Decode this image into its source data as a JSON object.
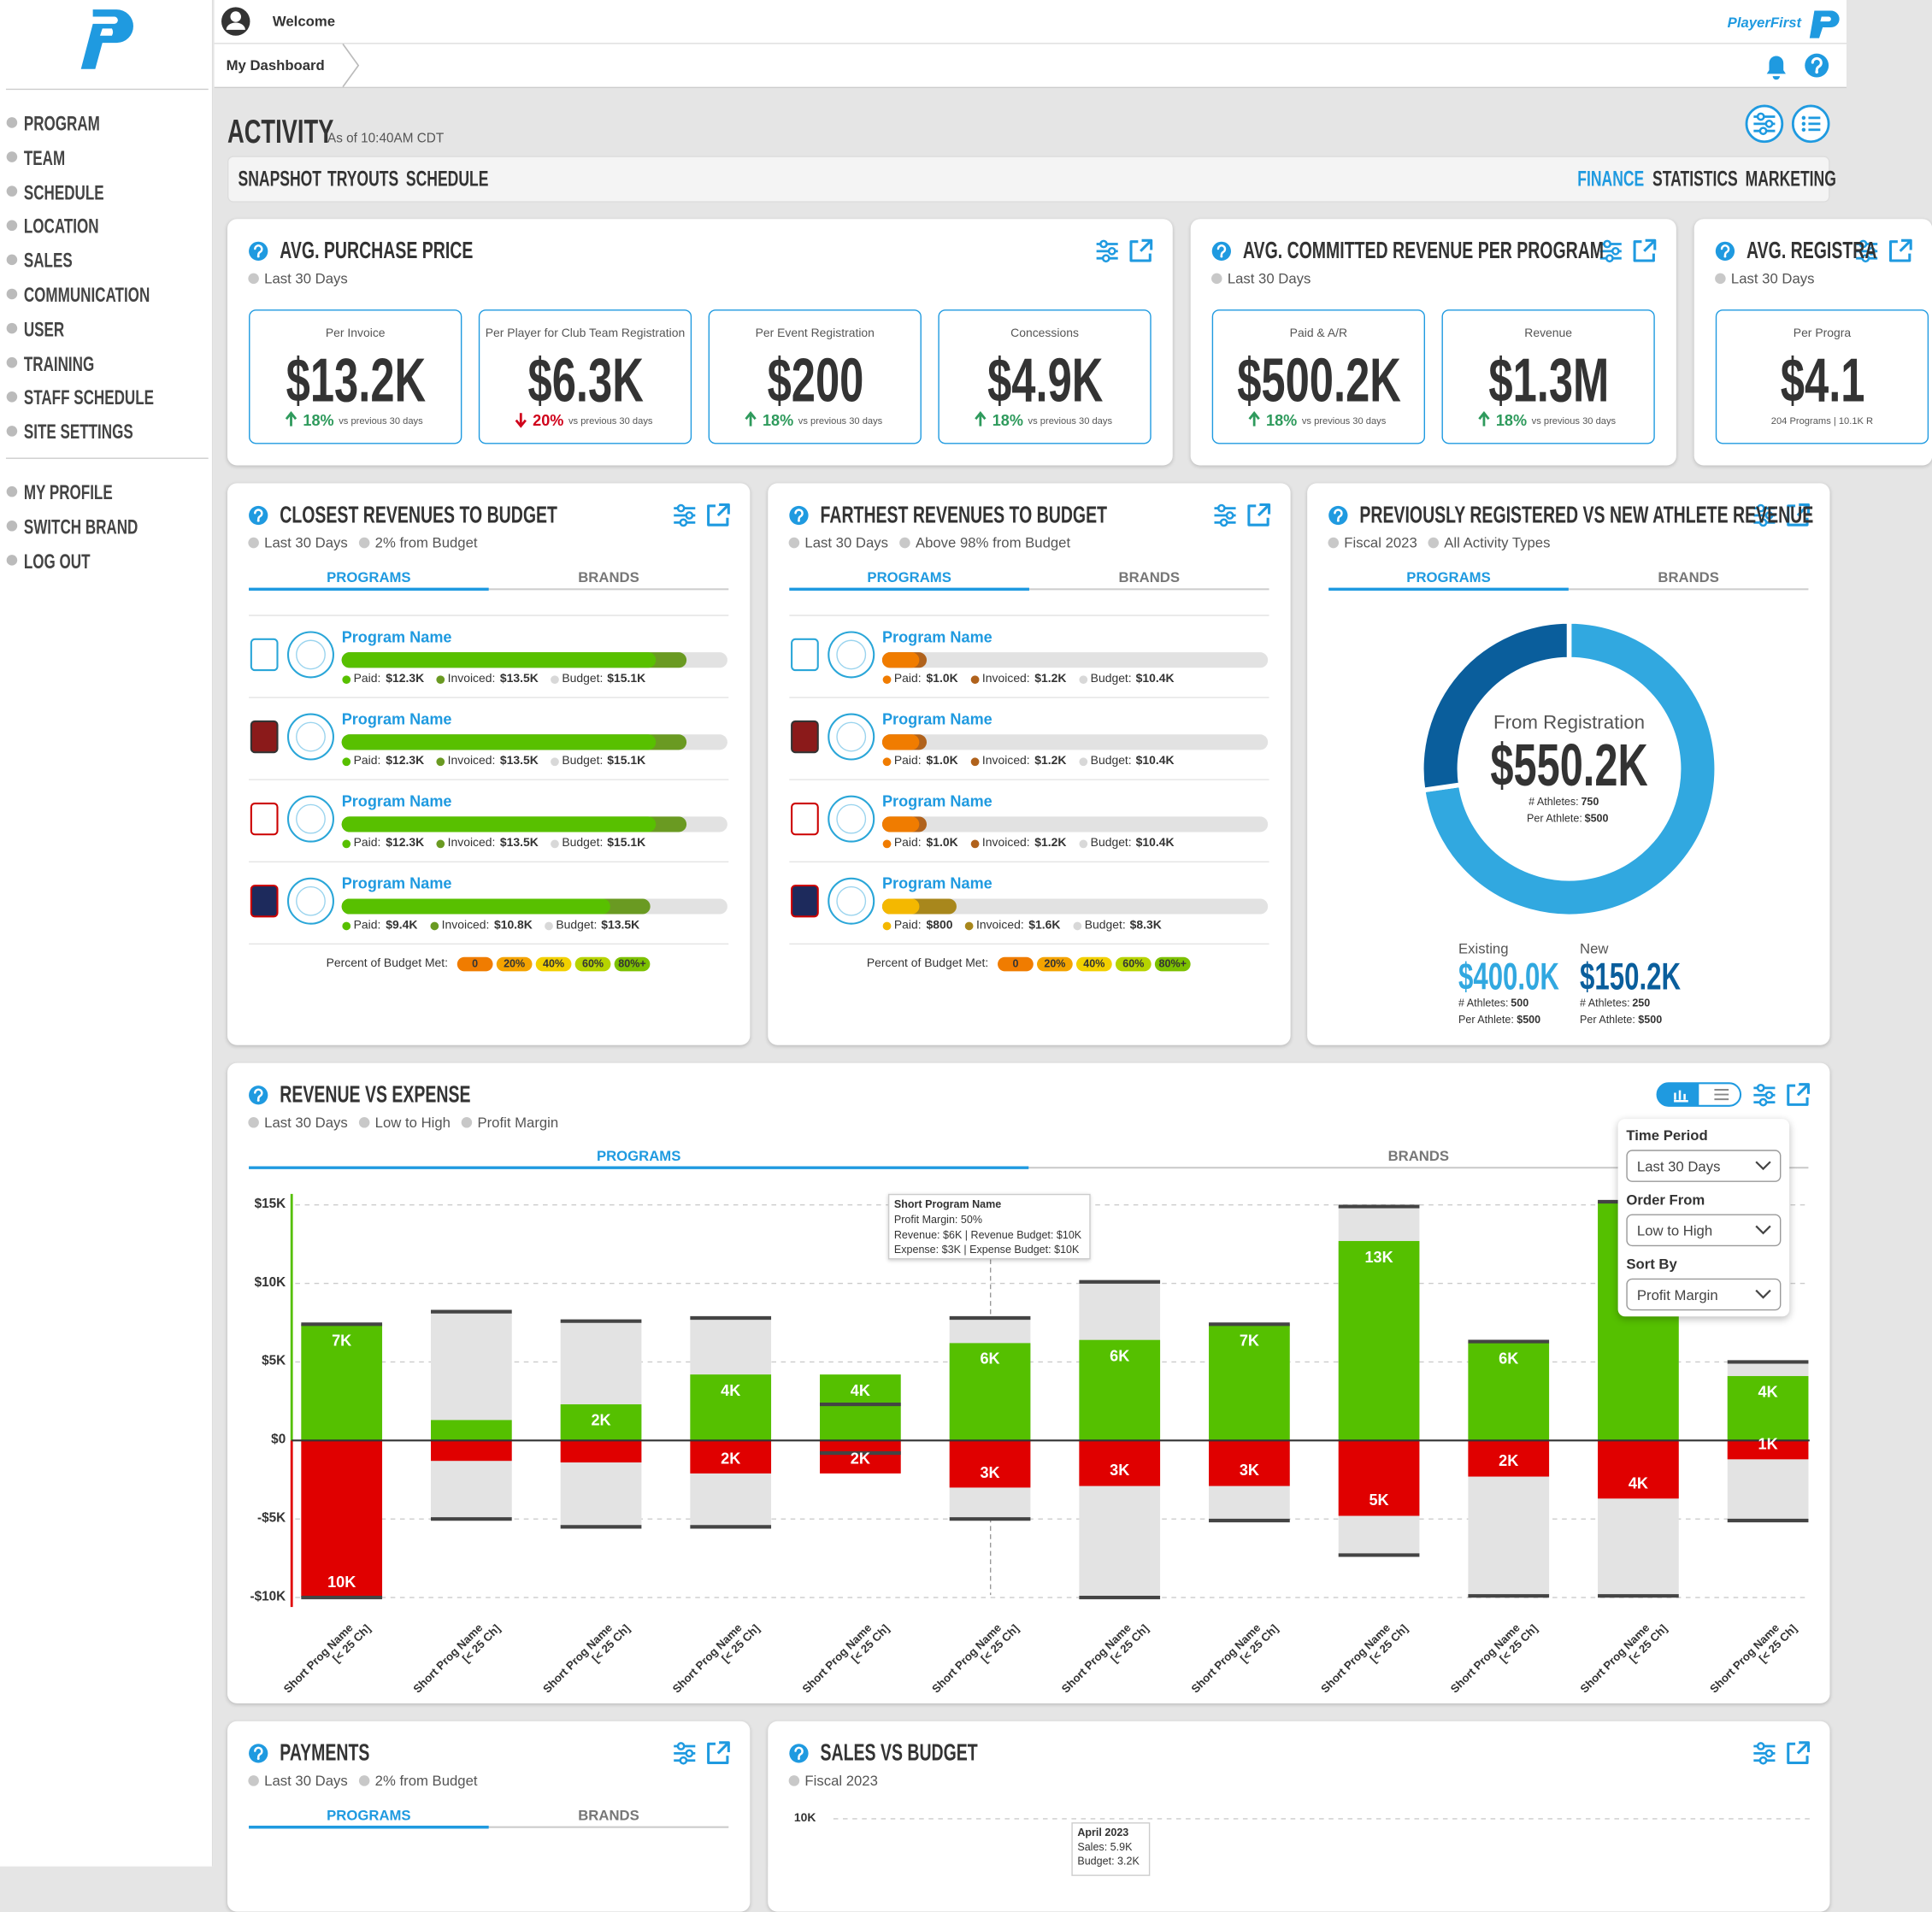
{
  "sidebar": {
    "menu": [
      "PROGRAM",
      "TEAM",
      "SCHEDULE",
      "LOCATION",
      "SALES",
      "COMMUNICATION",
      "USER",
      "TRAINING",
      "STAFF SCHEDULE",
      "SITE SETTINGS"
    ],
    "account": [
      "MY PROFILE",
      "SWITCH BRAND",
      "LOG OUT"
    ]
  },
  "topbar": {
    "welcome": "Welcome",
    "brand": "PlayerFirst",
    "breadcrumb": "My Dashboard"
  },
  "activity": {
    "title": "ACTIVITY",
    "as_of": "As of 10:40AM CDT",
    "tabs_left": [
      "SNAPSHOT",
      "TRYOUTS",
      "SCHEDULE"
    ],
    "tabs_right": [
      "FINANCE",
      "STATISTICS",
      "MARKETING"
    ],
    "active_right": 0
  },
  "kpi_cards": [
    {
      "title": "AVG. PURCHASE PRICE",
      "filters": [
        "Last 30 Days"
      ],
      "tiles": [
        {
          "label": "Per Invoice",
          "value": "$13.2K",
          "change": "18%",
          "trend": "up",
          "note": "vs previous 30 days"
        },
        {
          "label": "Per Player for Club Team Registration",
          "value": "$6.3K",
          "change": "20%",
          "trend": "down",
          "note": "vs previous 30 days"
        },
        {
          "label": "Per Event Registration",
          "value": "$200",
          "change": "18%",
          "trend": "up",
          "note": "vs previous 30 days"
        },
        {
          "label": "Concessions",
          "value": "$4.9K",
          "change": "18%",
          "trend": "up",
          "note": "vs previous 30 days"
        }
      ]
    },
    {
      "title": "AVG. COMMITTED REVENUE PER PROGRAM",
      "filters": [
        "Last 30 Days"
      ],
      "tiles": [
        {
          "label": "Paid & A/R",
          "value": "$500.2K",
          "change": "18%",
          "trend": "up",
          "note": "vs previous 30 days"
        },
        {
          "label": "Revenue",
          "value": "$1.3M",
          "change": "18%",
          "trend": "up",
          "note": "vs previous 30 days"
        }
      ]
    },
    {
      "title": "AVG. REGISTRA",
      "filters": [
        "Last 30 Days"
      ],
      "tiles": [
        {
          "label": "Per Progra",
          "value": "$4.1",
          "note": "204 Programs | 10.1K R"
        }
      ]
    }
  ],
  "budget_cards": [
    {
      "title": "CLOSEST REVENUES TO BUDGET",
      "filters": [
        "Last 30 Days",
        "2% from Budget"
      ],
      "tabs": [
        "PROGRAMS",
        "BRANDS"
      ],
      "row_labels": [
        "Paid:",
        "Invoiced:",
        "Budget:"
      ],
      "rows": [
        {
          "name": "Program Name",
          "values": [
            12300,
            13500,
            15100
          ],
          "value_labels": [
            "$12.3K",
            "$13.5K",
            "$15.1K"
          ],
          "colors": [
            "#58c000",
            "#6a9a22"
          ]
        },
        {
          "name": "Program Name",
          "values": [
            12300,
            13500,
            15100
          ],
          "value_labels": [
            "$12.3K",
            "$13.5K",
            "$15.1K"
          ],
          "colors": [
            "#58c000",
            "#6a9a22"
          ]
        },
        {
          "name": "Program Name",
          "values": [
            12300,
            13500,
            15100
          ],
          "value_labels": [
            "$12.3K",
            "$13.5K",
            "$15.1K"
          ],
          "colors": [
            "#58c000",
            "#6a9a22"
          ]
        },
        {
          "name": "Program Name",
          "values": [
            9400,
            10800,
            13500
          ],
          "value_labels": [
            "$9.4K",
            "$10.8K",
            "$13.5K"
          ],
          "colors": [
            "#58c000",
            "#6a9a22"
          ]
        }
      ],
      "legend_title": "Percent of Budget Met:",
      "legend": [
        "0",
        "20%",
        "40%",
        "60%",
        "80%+"
      ],
      "legend_colors": [
        "#f07c00",
        "#f4a300",
        "#f2d000",
        "#b6d300",
        "#7cc000"
      ]
    },
    {
      "title": "FARTHEST REVENUES TO BUDGET",
      "filters": [
        "Last 30 Days",
        "Above 98% from Budget"
      ],
      "tabs": [
        "PROGRAMS",
        "BRANDS"
      ],
      "row_labels": [
        "Paid:",
        "Invoiced:",
        "Budget:"
      ],
      "rows": [
        {
          "name": "Program Name",
          "values": [
            1000,
            1200,
            10400
          ],
          "value_labels": [
            "$1.0K",
            "$1.2K",
            "$10.4K"
          ],
          "colors": [
            "#f07c00",
            "#b0621c"
          ]
        },
        {
          "name": "Program Name",
          "values": [
            1000,
            1200,
            10400
          ],
          "value_labels": [
            "$1.0K",
            "$1.2K",
            "$10.4K"
          ],
          "colors": [
            "#f07c00",
            "#b0621c"
          ]
        },
        {
          "name": "Program Name",
          "values": [
            1000,
            1200,
            10400
          ],
          "value_labels": [
            "$1.0K",
            "$1.2K",
            "$10.4K"
          ],
          "colors": [
            "#f07c00",
            "#b0621c"
          ]
        },
        {
          "name": "Program Name",
          "values": [
            800,
            1600,
            8300
          ],
          "value_labels": [
            "$800",
            "$1.6K",
            "$8.3K"
          ],
          "colors": [
            "#f4b800",
            "#a8871c"
          ]
        }
      ],
      "legend_title": "Percent of Budget Met:",
      "legend": [
        "0",
        "20%",
        "40%",
        "60%",
        "80%+"
      ],
      "legend_colors": [
        "#f07c00",
        "#f4a300",
        "#f2d000",
        "#b6d300",
        "#7cc000"
      ]
    }
  ],
  "donut_card": {
    "title": "PREVIOUSLY REGISTERED VS NEW ATHLETE REVENUE",
    "filters": [
      "Fiscal 2023",
      "All Activity Types"
    ],
    "tabs": [
      "PROGRAMS",
      "BRANDS"
    ],
    "center": {
      "caption": "From Registration",
      "value": "$550.2K",
      "athletes_label": "# Athletes:",
      "athletes": "750",
      "per_label": "Per Athlete:",
      "per": "$500"
    },
    "segments": [
      {
        "name": "Existing",
        "value": 400000,
        "label": "$400.0K",
        "athletes": "500",
        "per": "$500",
        "color": "#31a8e0"
      },
      {
        "name": "New",
        "value": 150200,
        "label": "$150.2K",
        "athletes": "250",
        "per": "$500",
        "color": "#0a5e9c"
      }
    ]
  },
  "revenue_card": {
    "title": "REVENUE VS EXPENSE",
    "filters": [
      "Last 30 Days",
      "Low to High",
      "Profit Margin"
    ],
    "tabs": [
      "PROGRAMS",
      "BRANDS"
    ],
    "chart": {
      "type": "bar",
      "categories": [
        [
          "Short Prog Name",
          "[< 25 Ch]"
        ],
        [
          "Short Prog Name",
          "[< 25 Ch]"
        ],
        [
          "Short Prog Name",
          "[< 25 Ch]"
        ],
        [
          "Short Prog Name",
          "[< 25 Ch]"
        ],
        [
          "Short Prog Name",
          "[< 25 Ch]"
        ],
        [
          "Short Prog Name",
          "[< 25 Ch]"
        ],
        [
          "Short Prog Name",
          "[< 25 Ch]"
        ],
        [
          "Short Prog Name",
          "[< 25 Ch]"
        ],
        [
          "Short Prog Name",
          "[< 25 Ch]"
        ],
        [
          "Short Prog Name",
          "[< 25 Ch]"
        ],
        [
          "Short Prog Name",
          "[< 25 Ch]"
        ],
        [
          "Short Prog Name",
          "[< 25 Ch]"
        ]
      ],
      "revenue": [
        7400,
        1300,
        2300,
        4200,
        4200,
        6200,
        6400,
        7400,
        12700,
        6200,
        15200,
        4100
      ],
      "revenue_labels": [
        "7K",
        null,
        "2K",
        "4K",
        "4K",
        "6K",
        "6K",
        "7K",
        "13K",
        "6K",
        null,
        "4K"
      ],
      "revenue_budget": [
        7400,
        8200,
        7600,
        7800,
        2300,
        7800,
        10100,
        7400,
        14900,
        6300,
        15200,
        5000
      ],
      "expense": [
        -10000,
        -1300,
        -1400,
        -2100,
        -2100,
        -3000,
        -2900,
        -2900,
        -4800,
        -2300,
        -3700,
        -1200
      ],
      "expense_labels": [
        "10K",
        null,
        null,
        "2K",
        "2K",
        "3K",
        "3K",
        "3K",
        "5K",
        "2K",
        "4K",
        "1K"
      ],
      "expense_budget": [
        -10000,
        -5000,
        -5500,
        -5500,
        -800,
        -5000,
        -10000,
        -5100,
        -7300,
        -9900,
        -9900,
        -5100
      ],
      "colors": {
        "revenue": "#55c000",
        "expense": "#e00000",
        "budget": "#e3e3e3",
        "budget_line": "#444"
      },
      "ylim": [
        -10600,
        15700
      ],
      "yticks": [
        {
          "value": 15000,
          "label": "$15K"
        },
        {
          "value": 10000,
          "label": "$10K"
        },
        {
          "value": 5000,
          "label": "$5K"
        },
        {
          "value": 0,
          "label": "$0"
        },
        {
          "value": -5000,
          "label": "-$5K"
        },
        {
          "value": -10000,
          "label": "-$10K"
        }
      ],
      "grid": true
    },
    "tooltip": {
      "title": "Short Program Name",
      "lines": [
        "Profit Margin: 50%",
        "Revenue: $6K | Revenue Budget: $10K",
        "Expense: $3K | Expense Budget: $10K"
      ]
    },
    "filter_panel": [
      {
        "label": "Time Period",
        "value": "Last 30 Days"
      },
      {
        "label": "Order From",
        "value": "Low to High"
      },
      {
        "label": "Sort By",
        "value": "Profit Margin"
      }
    ]
  },
  "payments_card": {
    "title": "PAYMENTS",
    "filters": [
      "Last 30 Days",
      "2% from Budget"
    ],
    "tabs": [
      "PROGRAMS",
      "BRANDS"
    ]
  },
  "sales_card": {
    "title": "SALES VS BUDGET",
    "filters": [
      "Fiscal 2023"
    ],
    "ytick": "10K",
    "tooltip": [
      "April 2023",
      "Sales: 5.9K",
      "Budget: 3.2K"
    ]
  }
}
